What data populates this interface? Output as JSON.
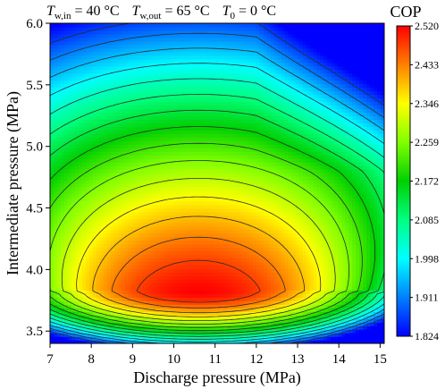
{
  "chart_data": {
    "type": "heatmap",
    "title": "",
    "conditions": {
      "tw_in": {
        "symbol": "T",
        "sub": "w,in",
        "value": " = 40 °C"
      },
      "tw_out": {
        "symbol": "T",
        "sub": "w,out",
        "value": " = 65 °C"
      },
      "t0": {
        "symbol": "T",
        "sub": "0",
        "value": " = 0 °C"
      }
    },
    "xlabel": "Discharge pressure (MPa)",
    "ylabel": "Intermediate pressure (MPa)",
    "xlim": [
      7,
      15.1
    ],
    "ylim": [
      3.4,
      6.0
    ],
    "x_ticks": [
      "7",
      "8",
      "9",
      "10",
      "11",
      "12",
      "13",
      "14",
      "15"
    ],
    "y_ticks": [
      "3.5",
      "4.0",
      "4.5",
      "5.0",
      "5.5",
      "6.0"
    ],
    "colorbar": {
      "title": "COP",
      "min": 1.824,
      "max": 2.52,
      "ticks": [
        "1.824",
        "1.911",
        "1.998",
        "2.085",
        "2.172",
        "2.259",
        "2.346",
        "2.433",
        "2.520"
      ],
      "colors": [
        "#0000ff",
        "#0080ff",
        "#00ffff",
        "#00ff80",
        "#00d000",
        "#80ff00",
        "#ffff00",
        "#ff8000",
        "#ff0000"
      ]
    },
    "peak": {
      "x": 10.6,
      "y": 3.82,
      "cop": 2.52
    }
  }
}
